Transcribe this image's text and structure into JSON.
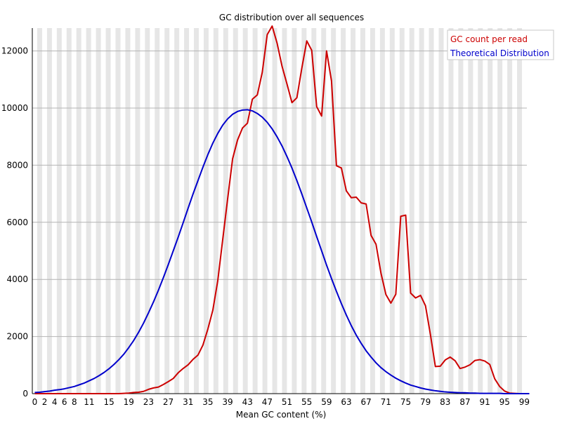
{
  "chart_data": {
    "type": "line",
    "title": "GC distribution over all sequences",
    "xlabel": "Mean GC content (%)",
    "ylabel": "",
    "xlim": [
      0,
      100
    ],
    "ylim": [
      0,
      12800
    ],
    "x_ticks": [
      "0",
      "2",
      "4",
      "6",
      "8",
      "11",
      "15",
      "19",
      "23",
      "27",
      "31",
      "35",
      "39",
      "43",
      "47",
      "51",
      "55",
      "59",
      "63",
      "67",
      "71",
      "75",
      "79",
      "83",
      "87",
      "91",
      "95",
      "99"
    ],
    "y_ticks": [
      "0",
      "2000",
      "4000",
      "6000",
      "8000",
      "10000",
      "12000"
    ],
    "grid": true,
    "legend_position": "top-right",
    "series": [
      {
        "name": "GC count per read",
        "color": "#cc0000",
        "x": [
          0,
          1,
          2,
          3,
          4,
          5,
          6,
          7,
          8,
          9,
          10,
          11,
          12,
          13,
          14,
          15,
          16,
          17,
          18,
          19,
          20,
          21,
          22,
          23,
          24,
          25,
          26,
          27,
          28,
          29,
          30,
          31,
          32,
          33,
          34,
          35,
          36,
          37,
          38,
          39,
          40,
          41,
          42,
          43,
          44,
          45,
          46,
          47,
          48,
          49,
          50,
          51,
          52,
          53,
          54,
          55,
          56,
          57,
          58,
          59,
          60,
          61,
          62,
          63,
          64,
          65,
          66,
          67,
          68,
          69,
          70,
          71,
          72,
          73,
          74,
          75,
          76,
          77,
          78,
          79,
          80,
          81,
          82,
          83,
          84,
          85,
          86,
          87,
          88,
          89,
          90,
          91,
          92,
          93,
          94,
          95,
          96,
          97,
          98,
          99,
          100
        ],
        "values": [
          0,
          0,
          0,
          0,
          0,
          0,
          0,
          0,
          0,
          0,
          0,
          0,
          0,
          0,
          0,
          0,
          0,
          0,
          10,
          20,
          40,
          50,
          80,
          150,
          200,
          230,
          320,
          420,
          530,
          730,
          880,
          1010,
          1200,
          1350,
          1700,
          2260,
          2920,
          3950,
          5390,
          6820,
          8220,
          8880,
          9300,
          9470,
          10310,
          10460,
          11250,
          12570,
          12870,
          12270,
          11460,
          10840,
          10190,
          10360,
          11400,
          12350,
          12020,
          10050,
          9720,
          12000,
          10950,
          7980,
          7900,
          7100,
          6860,
          6880,
          6680,
          6640,
          5540,
          5230,
          4220,
          3470,
          3170,
          3480,
          6210,
          6250,
          3520,
          3350,
          3440,
          3080,
          2070,
          950,
          960,
          1180,
          1280,
          1150,
          880,
          930,
          1010,
          1160,
          1190,
          1140,
          1020,
          520,
          250,
          90,
          20,
          10,
          0,
          0,
          0
        ]
      },
      {
        "name": "Theoretical Distribution",
        "color": "#0000cc",
        "x": [
          0,
          1,
          2,
          3,
          4,
          5,
          6,
          7,
          8,
          9,
          10,
          11,
          12,
          13,
          14,
          15,
          16,
          17,
          18,
          19,
          20,
          21,
          22,
          23,
          24,
          25,
          26,
          27,
          28,
          29,
          30,
          31,
          32,
          33,
          34,
          35,
          36,
          37,
          38,
          39,
          40,
          41,
          42,
          43,
          44,
          45,
          46,
          47,
          48,
          49,
          50,
          51,
          52,
          53,
          54,
          55,
          56,
          57,
          58,
          59,
          60,
          61,
          62,
          63,
          64,
          65,
          66,
          67,
          68,
          69,
          70,
          71,
          72,
          73,
          74,
          75,
          76,
          77,
          78,
          79,
          80,
          81,
          82,
          83,
          84,
          85,
          86,
          87,
          88,
          89,
          90,
          91,
          92,
          93,
          94,
          95,
          96,
          97,
          98,
          99,
          100
        ],
        "values": [
          40,
          50,
          70,
          90,
          120,
          140,
          170,
          210,
          250,
          310,
          370,
          450,
          530,
          630,
          740,
          870,
          1020,
          1190,
          1380,
          1610,
          1860,
          2150,
          2470,
          2830,
          3210,
          3620,
          4060,
          4520,
          5000,
          5480,
          5980,
          6490,
          6990,
          7460,
          7930,
          8370,
          8770,
          9110,
          9400,
          9620,
          9780,
          9880,
          9930,
          9940,
          9900,
          9810,
          9680,
          9500,
          9270,
          8990,
          8670,
          8300,
          7900,
          7460,
          6990,
          6500,
          6010,
          5500,
          5000,
          4500,
          4030,
          3580,
          3150,
          2750,
          2380,
          2050,
          1760,
          1500,
          1280,
          1080,
          910,
          770,
          650,
          540,
          450,
          370,
          300,
          250,
          200,
          160,
          130,
          100,
          80,
          60,
          50,
          40,
          30,
          30,
          20,
          20,
          10,
          10,
          10,
          10,
          10,
          0,
          0,
          0,
          0,
          0,
          0
        ]
      }
    ]
  }
}
